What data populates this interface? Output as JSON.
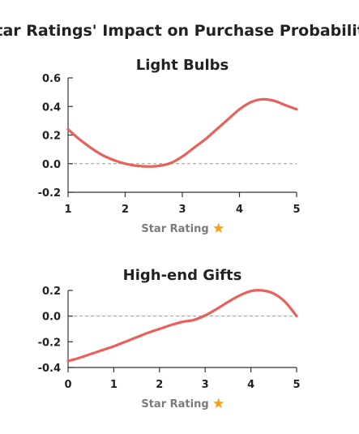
{
  "figure_title": "Star Ratings' Impact on Purchase Probability",
  "colors": {
    "line": "#e8615a",
    "axis": "#333333",
    "zero_line": "#9a9a9a",
    "star": "#f3a31b",
    "text": "#222222",
    "xlabel_text": "#7a7a7a"
  },
  "chart_data": [
    {
      "type": "line",
      "title": "Light Bulbs",
      "xlabel": "Star Rating",
      "xlabel_icon": "star-icon",
      "ylabel": "",
      "xlim": [
        1,
        5
      ],
      "ylim": [
        -0.2,
        0.6
      ],
      "x_ticks": [
        1,
        2,
        3,
        4,
        5
      ],
      "y_ticks": [
        -0.2,
        0.0,
        0.2,
        0.4,
        0.6
      ],
      "zero_line": true,
      "series": [
        {
          "x": [
            1.0,
            1.2,
            1.4,
            1.6,
            1.8,
            2.0,
            2.2,
            2.4,
            2.6,
            2.8,
            3.0,
            3.2,
            3.4,
            3.6,
            3.8,
            4.0,
            4.2,
            4.4,
            4.6,
            4.8,
            5.0
          ],
          "y": [
            0.24,
            0.17,
            0.11,
            0.06,
            0.025,
            0.0,
            -0.015,
            -0.02,
            -0.015,
            0.005,
            0.05,
            0.11,
            0.17,
            0.24,
            0.31,
            0.38,
            0.43,
            0.45,
            0.44,
            0.41,
            0.38
          ]
        }
      ]
    },
    {
      "type": "line",
      "title": "High-end Gifts",
      "xlabel": "Star Rating",
      "xlabel_icon": "star-icon",
      "ylabel": "",
      "xlim": [
        0,
        5
      ],
      "ylim": [
        -0.4,
        0.2
      ],
      "x_ticks": [
        0,
        1,
        2,
        3,
        4,
        5
      ],
      "y_ticks": [
        -0.4,
        -0.2,
        0.0,
        0.2
      ],
      "zero_line": true,
      "series": [
        {
          "x": [
            0.0,
            0.25,
            0.5,
            0.75,
            1.0,
            1.25,
            1.5,
            1.75,
            2.0,
            2.25,
            2.5,
            2.75,
            3.0,
            3.25,
            3.5,
            3.75,
            4.0,
            4.25,
            4.5,
            4.75,
            5.0
          ],
          "y": [
            -0.35,
            -0.325,
            -0.295,
            -0.265,
            -0.235,
            -0.2,
            -0.165,
            -0.13,
            -0.1,
            -0.07,
            -0.045,
            -0.03,
            0.005,
            0.055,
            0.11,
            0.16,
            0.195,
            0.2,
            0.175,
            0.11,
            0.0
          ]
        }
      ]
    }
  ]
}
